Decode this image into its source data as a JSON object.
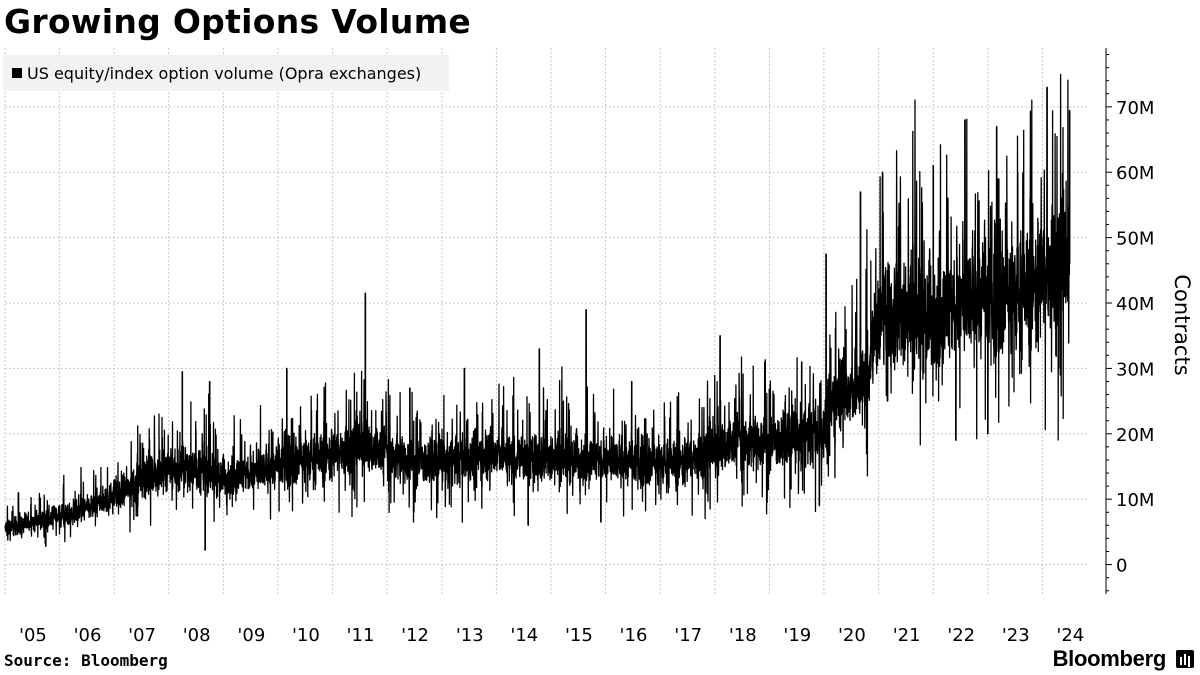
{
  "title": "Growing Options Volume",
  "source": "Source: Bloomberg",
  "brand": "Bloomberg",
  "chart_data": {
    "type": "line",
    "title": "Growing Options Volume",
    "ylabel": "Contracts",
    "xlabel": "",
    "series": [
      {
        "name": "US equity/index option volume (Opra exchanges)",
        "color": "#000000",
        "x": [
          "2005-01-01",
          "2005-07-01",
          "2006-01-01",
          "2006-07-01",
          "2007-01-01",
          "2007-07-01",
          "2008-01-01",
          "2008-07-01",
          "2009-01-01",
          "2009-07-01",
          "2010-01-01",
          "2010-07-01",
          "2011-01-01",
          "2011-07-01",
          "2012-01-01",
          "2012-07-01",
          "2013-01-01",
          "2013-07-01",
          "2014-01-01",
          "2014-07-01",
          "2015-01-01",
          "2015-07-01",
          "2016-01-01",
          "2016-07-01",
          "2017-01-01",
          "2017-07-01",
          "2018-01-01",
          "2018-07-01",
          "2019-01-01",
          "2019-07-01",
          "2020-01-01",
          "2020-04-01",
          "2020-07-01",
          "2020-10-01",
          "2021-01-01",
          "2021-07-01",
          "2022-01-01",
          "2022-07-01",
          "2023-01-01",
          "2023-07-01",
          "2024-01-01",
          "2024-04-01",
          "2024-07-01"
        ],
        "values": [
          5.5,
          6.5,
          7.5,
          8.5,
          10.5,
          13,
          14.5,
          15,
          13,
          14,
          15,
          16,
          17,
          18.5,
          17,
          15.5,
          15.5,
          16.5,
          17,
          16,
          16.5,
          16,
          16,
          15.5,
          15.5,
          16,
          18,
          19,
          18.5,
          19,
          21,
          27,
          26,
          28,
          37,
          39,
          37,
          40,
          41,
          41,
          44,
          47,
          46
        ]
      }
    ],
    "spikes": [
      {
        "x": "2005-04-01",
        "value": 11
      },
      {
        "x": "2005-10-01",
        "value": 2.8
      },
      {
        "x": "2008-04-01",
        "value": 29.5
      },
      {
        "x": "2008-10-01",
        "value": 28
      },
      {
        "x": "2008-09-01",
        "value": 2.2
      },
      {
        "x": "2010-03-01",
        "value": 30
      },
      {
        "x": "2011-08-08",
        "value": 41.5
      },
      {
        "x": "2012-06-01",
        "value": 27
      },
      {
        "x": "2013-06-01",
        "value": 30
      },
      {
        "x": "2014-10-15",
        "value": 33
      },
      {
        "x": "2014-08-01",
        "value": 6
      },
      {
        "x": "2015-08-24",
        "value": 39
      },
      {
        "x": "2015-12-01",
        "value": 6.5
      },
      {
        "x": "2016-06-24",
        "value": 28
      },
      {
        "x": "2018-02-05",
        "value": 35
      },
      {
        "x": "2018-12-01",
        "value": 31
      },
      {
        "x": "2019-08-05",
        "value": 31
      },
      {
        "x": "2019-12-01",
        "value": 9
      },
      {
        "x": "2020-01-15",
        "value": 47.5
      },
      {
        "x": "2020-09-01",
        "value": 57
      },
      {
        "x": "2021-01-27",
        "value": 60
      },
      {
        "x": "2021-03-01",
        "value": 25
      },
      {
        "x": "2022-01-01",
        "value": 61
      },
      {
        "x": "2022-06-01",
        "value": 19
      },
      {
        "x": "2022-08-01",
        "value": 68
      },
      {
        "x": "2023-01-01",
        "value": 20
      },
      {
        "x": "2023-03-01",
        "value": 67
      },
      {
        "x": "2024-02-01",
        "value": 73
      },
      {
        "x": "2024-04-01",
        "value": 32
      },
      {
        "x": "2024-07-01",
        "value": 69.5
      }
    ],
    "x_tick_labels": [
      "'05",
      "'06",
      "'07",
      "'08",
      "'09",
      "'10",
      "'11",
      "'12",
      "'13",
      "'14",
      "'15",
      "'16",
      "'17",
      "'18",
      "'19",
      "'20",
      "'21",
      "'22",
      "'23",
      "'24"
    ],
    "x_ticks": [
      "2005-01-01",
      "2006-01-01",
      "2007-01-01",
      "2008-01-01",
      "2009-01-01",
      "2010-01-01",
      "2011-01-01",
      "2012-01-01",
      "2013-01-01",
      "2014-01-01",
      "2015-01-01",
      "2016-01-01",
      "2017-01-01",
      "2018-01-01",
      "2019-01-01",
      "2020-01-01",
      "2021-01-01",
      "2022-01-01",
      "2023-01-01",
      "2024-01-01"
    ],
    "xlim": [
      "2005-01-01",
      "2024-11-01"
    ],
    "y_ticks": [
      0,
      10,
      20,
      30,
      40,
      50,
      60,
      70
    ],
    "y_tick_labels": [
      "0",
      "10M",
      "20M",
      "30M",
      "40M",
      "50M",
      "60M",
      "70M"
    ],
    "ylim": [
      -4.5,
      79
    ],
    "y_unit": "millions of contracts",
    "grid": true,
    "legend": "top-left"
  }
}
